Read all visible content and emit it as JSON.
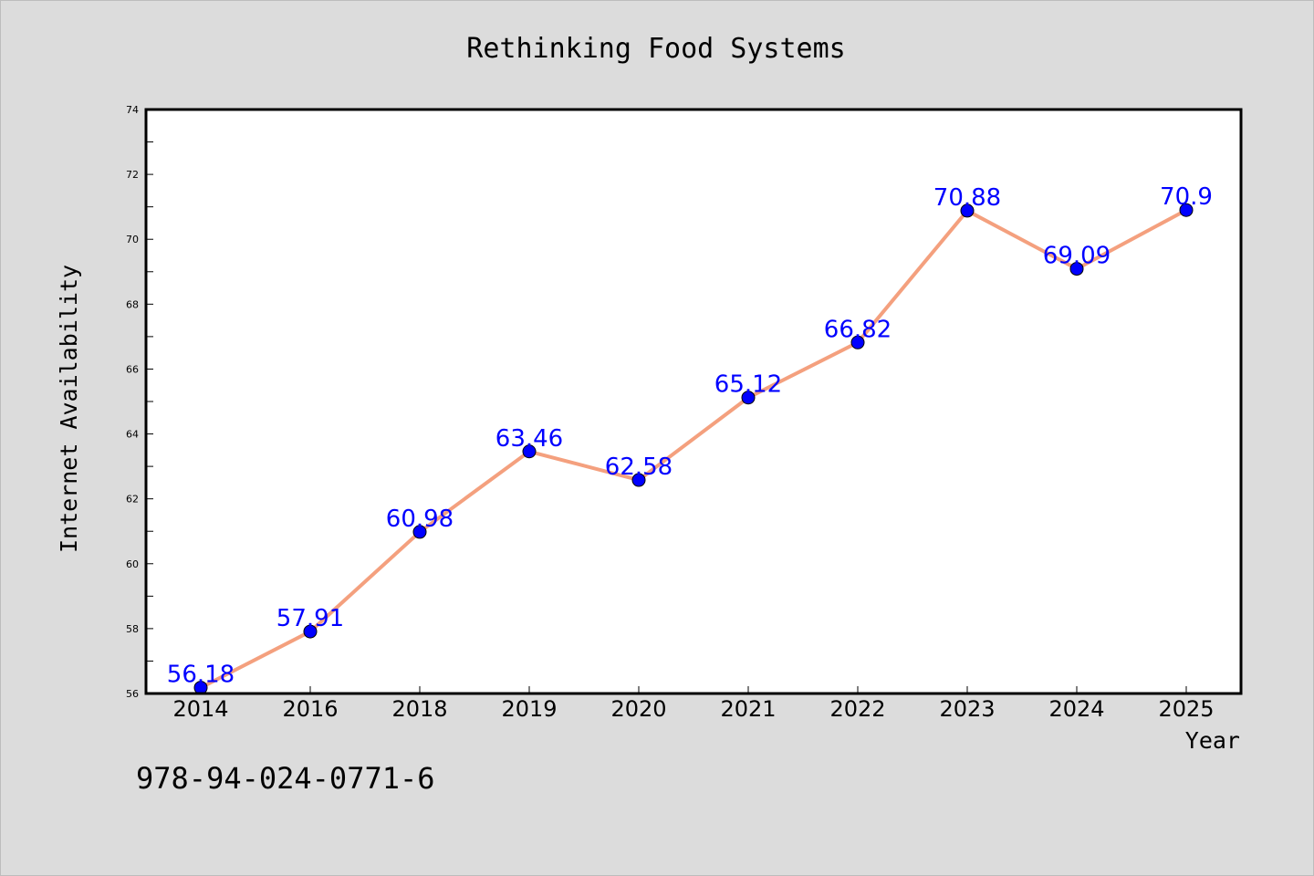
{
  "chart_data": {
    "type": "line",
    "title": "Rethinking Food Systems",
    "xlabel": "Year",
    "ylabel": "Internet Availability",
    "categories": [
      "2014",
      "2016",
      "2018",
      "2019",
      "2020",
      "2021",
      "2022",
      "2023",
      "2024",
      "2025"
    ],
    "values": [
      56.18,
      57.91,
      60.98,
      63.46,
      62.58,
      65.12,
      66.82,
      70.88,
      69.09,
      70.9
    ],
    "data_labels": [
      "56.18",
      "57.91",
      "60.98",
      "63.46",
      "62.58",
      "65.12",
      "66.82",
      "70.88",
      "69.09",
      "70.9"
    ],
    "ylim": [
      56,
      74
    ],
    "yticks": [
      56,
      58,
      60,
      62,
      64,
      66,
      68,
      70,
      72,
      74
    ],
    "grid": false,
    "legend": "none",
    "colors": {
      "line": "#f4a07e",
      "marker": "#0000ff",
      "labels": "#0000ff",
      "background": "#dcdcdc",
      "plot_area": "#ffffff"
    }
  },
  "footer": {
    "isbn": "978-94-024-0771-6"
  }
}
